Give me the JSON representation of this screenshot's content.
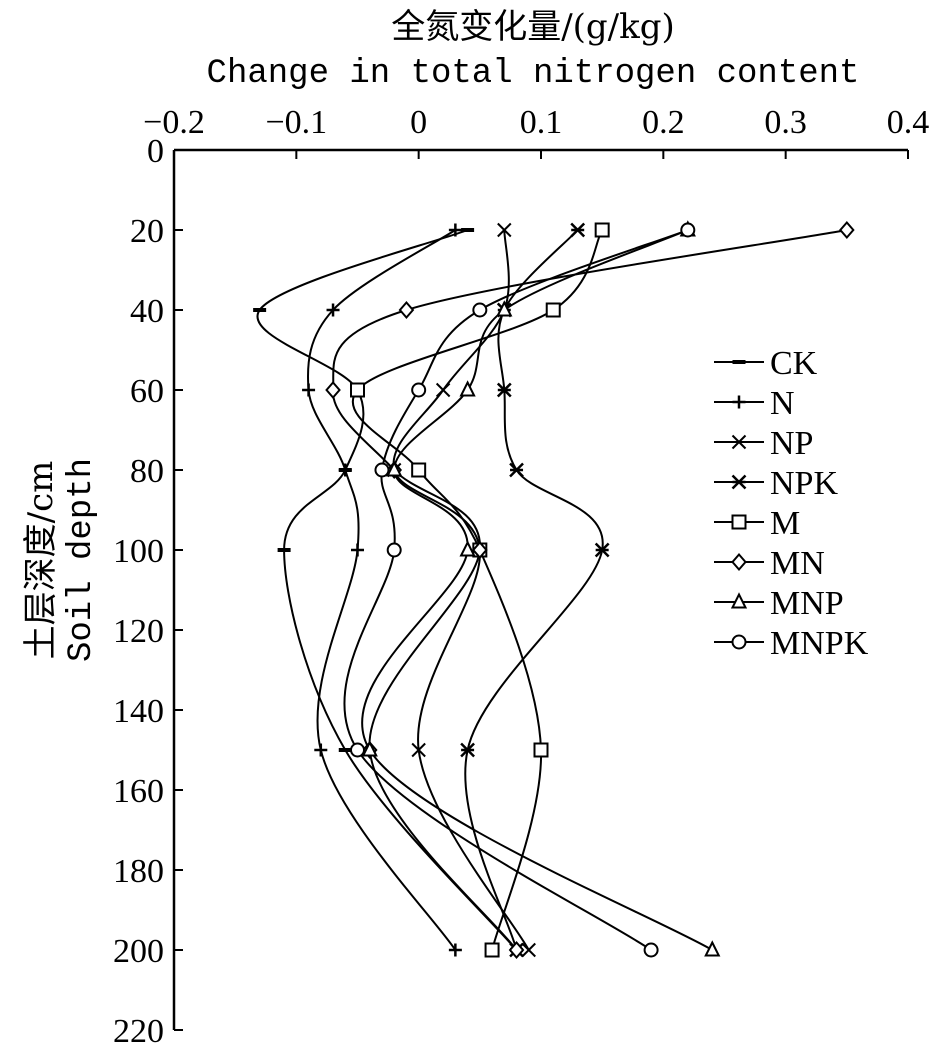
{
  "chart_data": {
    "type": "line",
    "title_cn": "全氮变化量/(g/kg)",
    "title_en": "Change in total nitrogen content",
    "ylabel_cn": "土层深度/cm",
    "ylabel_en": "Soil depth",
    "x_axis_position": "top",
    "y_axis_inverted": true,
    "xlim": [
      -0.2,
      0.4
    ],
    "ylim": [
      0,
      220
    ],
    "x_ticks": [
      -0.2,
      -0.1,
      0,
      0.1,
      0.2,
      0.3,
      0.4
    ],
    "x_tick_labels": [
      "−0.2",
      "−0.1",
      "0",
      "0.1",
      "0.2",
      "0.3",
      "0.4"
    ],
    "y_ticks": [
      0,
      20,
      40,
      60,
      80,
      100,
      120,
      140,
      160,
      180,
      200,
      220
    ],
    "y_tick_labels": [
      "0",
      "20",
      "40",
      "60",
      "80",
      "100",
      "120",
      "140",
      "160",
      "180",
      "200",
      "220"
    ],
    "grid": false,
    "legend_position": "right-middle",
    "series": [
      {
        "name": "CK",
        "marker": "dash",
        "depths": [
          20,
          40,
          60,
          80,
          100,
          150,
          200
        ],
        "values": [
          0.04,
          -0.13,
          -0.05,
          -0.06,
          -0.11,
          -0.06,
          0.08
        ]
      },
      {
        "name": "N",
        "marker": "plus",
        "depths": [
          20,
          40,
          60,
          80,
          100,
          150,
          200
        ],
        "values": [
          0.03,
          -0.07,
          -0.09,
          -0.06,
          -0.05,
          -0.08,
          0.03
        ]
      },
      {
        "name": "NP",
        "marker": "x",
        "depths": [
          20,
          40,
          60,
          80,
          100,
          150,
          200
        ],
        "values": [
          0.07,
          0.07,
          0.02,
          -0.02,
          0.05,
          0.0,
          0.09
        ]
      },
      {
        "name": "NPK",
        "marker": "asterisk",
        "depths": [
          20,
          40,
          60,
          80,
          100,
          150,
          200
        ],
        "values": [
          0.13,
          0.07,
          0.07,
          0.08,
          0.15,
          0.04,
          0.08
        ]
      },
      {
        "name": "M",
        "marker": "square",
        "depths": [
          20,
          40,
          60,
          80,
          100,
          150,
          200
        ],
        "values": [
          0.15,
          0.11,
          -0.05,
          0.0,
          0.05,
          0.1,
          0.06
        ]
      },
      {
        "name": "MN",
        "marker": "diamond",
        "depths": [
          20,
          40,
          60,
          80,
          100,
          150,
          200
        ],
        "values": [
          0.35,
          -0.01,
          -0.07,
          -0.02,
          0.05,
          -0.04,
          0.08
        ]
      },
      {
        "name": "MNP",
        "marker": "triangle",
        "depths": [
          20,
          40,
          60,
          80,
          100,
          150,
          200
        ],
        "values": [
          0.22,
          0.07,
          0.04,
          -0.02,
          0.04,
          -0.04,
          0.24
        ]
      },
      {
        "name": "MNPK",
        "marker": "circle",
        "depths": [
          20,
          40,
          60,
          80,
          100,
          150,
          200
        ],
        "values": [
          0.22,
          0.05,
          0.0,
          -0.03,
          -0.02,
          -0.05,
          0.19
        ]
      }
    ]
  }
}
